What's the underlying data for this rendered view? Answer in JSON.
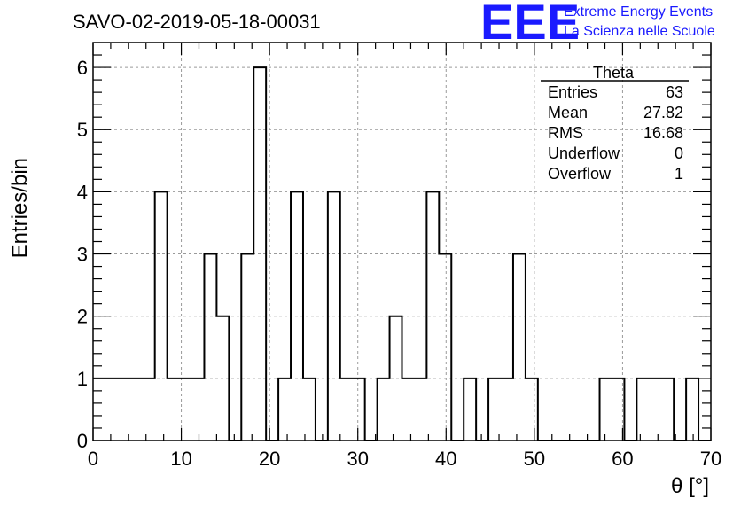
{
  "chart_data": {
    "type": "bar",
    "title": "SAVO-02-2019-05-18-00031",
    "xlabel": "θ [°]",
    "ylabel": "Entries/bin",
    "xlim": [
      0,
      70
    ],
    "ylim": [
      0,
      6.4
    ],
    "x_ticks": [
      "0",
      "10",
      "20",
      "30",
      "40",
      "50",
      "60",
      "70"
    ],
    "y_ticks": [
      "0",
      "1",
      "2",
      "3",
      "4",
      "5",
      "6"
    ],
    "grid": true,
    "bin_width": 1.4,
    "values": [
      1,
      1,
      1,
      1,
      1,
      4,
      1,
      1,
      1,
      3,
      2,
      0,
      3,
      6,
      0,
      1,
      4,
      1,
      0,
      4,
      1,
      1,
      0,
      1,
      2,
      1,
      1,
      4,
      3,
      0,
      1,
      0,
      1,
      1,
      3,
      1,
      0,
      0,
      0,
      0,
      0,
      1,
      1,
      0,
      1,
      1,
      1,
      0,
      1,
      0
    ],
    "stats": {
      "name": "Theta",
      "rows": [
        {
          "label": "Entries",
          "value": "63"
        },
        {
          "label": "Mean",
          "value": "27.82"
        },
        {
          "label": "RMS",
          "value": "16.68"
        },
        {
          "label": "Underflow",
          "value": "0"
        },
        {
          "label": "Overflow",
          "value": "1"
        }
      ]
    }
  },
  "branding": {
    "logo": "EEE",
    "line1": "Extreme Energy Events",
    "line2": "La Scienza nelle Scuole",
    "color": "#1a1aff"
  }
}
